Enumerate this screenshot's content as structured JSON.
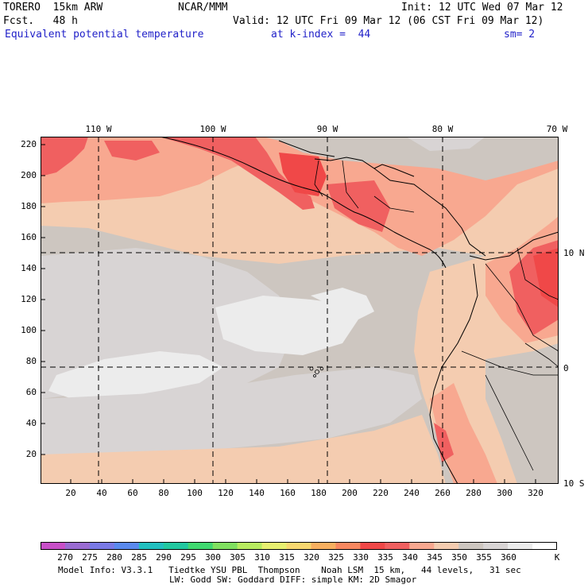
{
  "header": {
    "model_line": "TORERO  15km ARW",
    "center": "NCAR/MMM",
    "init": "Init: 12 UTC Wed 07 Mar 12",
    "fcst_line": "Fcst.   48 h",
    "valid": "Valid: 12 UTC Fri 09 Mar 12 (06 CST Fri 09 Mar 12)",
    "field": "Equivalent potential temperature",
    "level": "at k-index =  44",
    "smooth": "sm= 2"
  },
  "map": {
    "lon_labels": [
      "110 W",
      "100 W",
      "90 W",
      "80 W",
      "70 W"
    ],
    "lat_labels": [
      "10 N",
      "0",
      "10 S"
    ],
    "y_ticks": [
      "220",
      "200",
      "180",
      "160",
      "140",
      "120",
      "100",
      "80",
      "60",
      "40",
      "20"
    ],
    "x_ticks": [
      "20",
      "40",
      "60",
      "80",
      "100",
      "120",
      "140",
      "160",
      "180",
      "200",
      "220",
      "240",
      "260",
      "280",
      "300",
      "320"
    ]
  },
  "colorbar": {
    "labels": [
      "270",
      "275",
      "280",
      "285",
      "290",
      "295",
      "300",
      "305",
      "310",
      "315",
      "320",
      "325",
      "330",
      "335",
      "340",
      "345",
      "350",
      "355",
      "360"
    ],
    "unit": "K",
    "colors": [
      "#c850c8",
      "#9a6cd2",
      "#7a7ae6",
      "#5a8aee",
      "#22c0c0",
      "#22c8a0",
      "#40d870",
      "#80e060",
      "#b8ec60",
      "#e8f070",
      "#f8d870",
      "#f8b060",
      "#f88860",
      "#f04848",
      "#f06060",
      "#f8a890",
      "#f4ccb0",
      "#cdc6c0",
      "#d8d4d4",
      "#ececec",
      "#ffffff"
    ]
  },
  "footer": {
    "line1": "Model Info: V3.3.1   Tiedtke YSU PBL  Thompson    Noah LSM  15 km,   44 levels,   31 sec",
    "line2": "LW: Godd SW: Goddard DIFF: simple KM: 2D Smagor"
  }
}
